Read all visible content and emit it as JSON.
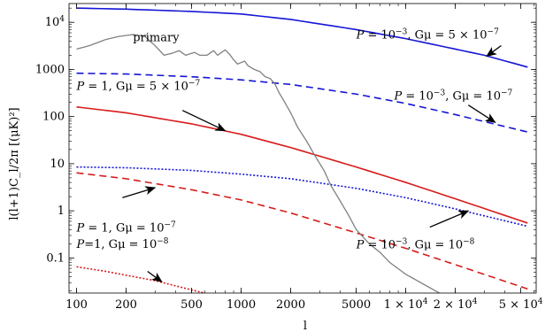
{
  "chart_data": {
    "type": "line",
    "title": "",
    "xlabel": "l",
    "ylabel": "l(l+1)C_l/2π [(μK)²]",
    "x_scale": "log",
    "y_scale": "log",
    "xlim": [
      90,
      62000
    ],
    "ylim": [
      0.018,
      25000
    ],
    "grid": false,
    "legend": "none",
    "x_ticks": [
      {
        "value": 100,
        "label": "100"
      },
      {
        "value": 200,
        "label": "200"
      },
      {
        "value": 500,
        "label": "500"
      },
      {
        "value": 1000,
        "label": "1000"
      },
      {
        "value": 2000,
        "label": "2000"
      },
      {
        "value": 5000,
        "label": "5000"
      },
      {
        "value": 10000,
        "label": "1 × 10⁴"
      },
      {
        "value": 20000,
        "label": "2 × 10⁴"
      },
      {
        "value": 50000,
        "label": "5 × 10⁴"
      }
    ],
    "y_ticks": [
      {
        "value": 0.1,
        "label": "0.1"
      },
      {
        "value": 1,
        "label": "1"
      },
      {
        "value": 10,
        "label": "10"
      },
      {
        "value": 100,
        "label": "100"
      },
      {
        "value": 1000,
        "label": "1000"
      },
      {
        "value": 10000,
        "label": "10⁴"
      }
    ],
    "series": [
      {
        "key": "P1e-3_Gmu5e-7",
        "color": "#1515d6",
        "dash": "solid",
        "points": [
          [
            100,
            20000
          ],
          [
            200,
            19000
          ],
          [
            500,
            17000
          ],
          [
            1000,
            15000
          ],
          [
            2000,
            11500
          ],
          [
            5000,
            7000
          ],
          [
            10000,
            4500
          ],
          [
            20000,
            2700
          ],
          [
            30000,
            2000
          ],
          [
            55000,
            1120
          ]
        ]
      },
      {
        "key": "P1e-3_Gmu1e-7",
        "color": "#1515d6",
        "dash": "dashed",
        "points": [
          [
            100,
            830
          ],
          [
            200,
            800
          ],
          [
            500,
            700
          ],
          [
            1000,
            600
          ],
          [
            2000,
            480
          ],
          [
            5000,
            300
          ],
          [
            10000,
            190
          ],
          [
            20000,
            110
          ],
          [
            55000,
            47
          ]
        ]
      },
      {
        "key": "P1_Gmu5e-7",
        "color": "#d81b1b",
        "dash": "solid",
        "points": [
          [
            100,
            160
          ],
          [
            200,
            120
          ],
          [
            500,
            70
          ],
          [
            1000,
            42
          ],
          [
            2000,
            22
          ],
          [
            5000,
            8.5
          ],
          [
            10000,
            4
          ],
          [
            20000,
            1.8
          ],
          [
            55000,
            0.55
          ]
        ]
      },
      {
        "key": "P1e-3_Gmu1e-8",
        "color": "#1515d6",
        "dash": "dotted",
        "points": [
          [
            100,
            8.5
          ],
          [
            200,
            8.2
          ],
          [
            500,
            7.2
          ],
          [
            1000,
            6
          ],
          [
            2000,
            4.8
          ],
          [
            5000,
            3
          ],
          [
            10000,
            1.9
          ],
          [
            20000,
            1.1
          ],
          [
            55000,
            0.47
          ]
        ]
      },
      {
        "key": "P1_Gmu1e-7",
        "color": "#d81b1b",
        "dash": "dashed",
        "points": [
          [
            100,
            6.4
          ],
          [
            200,
            4.8
          ],
          [
            500,
            2.8
          ],
          [
            1000,
            1.7
          ],
          [
            2000,
            0.9
          ],
          [
            5000,
            0.34
          ],
          [
            10000,
            0.16
          ],
          [
            20000,
            0.072
          ],
          [
            55000,
            0.022
          ]
        ]
      },
      {
        "key": "P1_Gmu1e-8",
        "color": "#d81b1b",
        "dash": "dotted",
        "points": [
          [
            100,
            0.065
          ],
          [
            150,
            0.052
          ],
          [
            200,
            0.043
          ],
          [
            300,
            0.033
          ],
          [
            500,
            0.021
          ],
          [
            600,
            0.018
          ]
        ]
      },
      {
        "key": "primary",
        "color": "#808080",
        "dash": "solid",
        "points": [
          [
            100,
            2700
          ],
          [
            120,
            3200
          ],
          [
            150,
            4300
          ],
          [
            180,
            5000
          ],
          [
            220,
            5500
          ],
          [
            260,
            5000
          ],
          [
            300,
            3200
          ],
          [
            340,
            2000
          ],
          [
            380,
            2200
          ],
          [
            420,
            2500
          ],
          [
            460,
            2000
          ],
          [
            520,
            2300
          ],
          [
            560,
            2000
          ],
          [
            620,
            2000
          ],
          [
            680,
            2500
          ],
          [
            720,
            2000
          ],
          [
            760,
            2300
          ],
          [
            800,
            2600
          ],
          [
            850,
            2100
          ],
          [
            900,
            1600
          ],
          [
            950,
            1300
          ],
          [
            1000,
            1400
          ],
          [
            1050,
            1500
          ],
          [
            1100,
            1200
          ],
          [
            1200,
            1000
          ],
          [
            1300,
            900
          ],
          [
            1400,
            700
          ],
          [
            1500,
            640
          ],
          [
            1600,
            500
          ],
          [
            1700,
            320
          ],
          [
            1800,
            230
          ],
          [
            2000,
            120
          ],
          [
            2200,
            60
          ],
          [
            2500,
            30
          ],
          [
            2800,
            15
          ],
          [
            3200,
            7
          ],
          [
            3500,
            3.5
          ],
          [
            4000,
            1.6
          ],
          [
            4500,
            0.8
          ],
          [
            5000,
            0.4
          ],
          [
            6000,
            0.2
          ],
          [
            7000,
            0.13
          ],
          [
            8000,
            0.08
          ],
          [
            10000,
            0.045
          ],
          [
            13000,
            0.027
          ],
          [
            16000,
            0.018
          ]
        ]
      }
    ],
    "annotations": [
      {
        "id": "primary",
        "text": "primary",
        "tx": 220,
        "ty": 4000,
        "arrow": false
      },
      {
        "id": "a1",
        "prefix": "P = 10",
        "sup1": "−3",
        "mid": ", Gμ = 5 × 10",
        "sup2": "−7",
        "tx": 5000,
        "ty": 4500,
        "arrow": true,
        "ax": 31000,
        "ay": 1900,
        "fx": 38000,
        "fy": 3200
      },
      {
        "id": "a2",
        "prefix": "P = 10",
        "sup1": "−3",
        "mid": ", Gμ = 10",
        "sup2": "−7",
        "tx": 8500,
        "ty": 230,
        "arrow": true,
        "ax": 35000,
        "ay": 75,
        "fx": 24000,
        "fy": 175
      },
      {
        "id": "a3",
        "prefix": "P = 1, Gμ = 5 × 10",
        "sup1": "",
        "mid": "",
        "sup2": "−7",
        "tx": 100,
        "ty": 370,
        "arrow": true,
        "ax": 800,
        "ay": 50,
        "fx": 440,
        "fy": 135
      },
      {
        "id": "a4",
        "prefix": "P = 1, Gμ = 10",
        "sup1": "",
        "mid": "",
        "sup2": "−7",
        "tx": 100,
        "ty": 0.36,
        "arrow": true,
        "ax": 300,
        "ay": 3.1,
        "fx": 190,
        "fy": 1.9
      },
      {
        "id": "a5",
        "prefix": "P = 10",
        "sup1": "−3",
        "mid": ", Gμ = 10",
        "sup2": "−8",
        "tx": 5000,
        "ty": 0.16,
        "arrow": true,
        "ax": 24000,
        "ay": 1.0,
        "fx": 14000,
        "fy": 0.45
      },
      {
        "id": "a6",
        "prefix": "P=1, Gμ = 10",
        "sup1": "",
        "mid": "",
        "sup2": "−8",
        "tx": 100,
        "ty": 0.165,
        "arrow": true,
        "ax": 330,
        "ay": 0.031,
        "fx": 270,
        "fy": 0.052
      }
    ]
  }
}
